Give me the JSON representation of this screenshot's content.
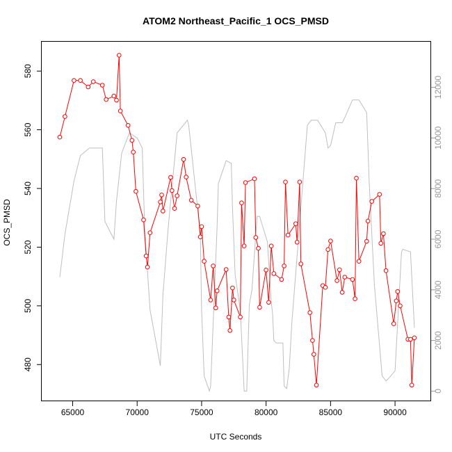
{
  "chart_data": {
    "type": "line",
    "title": "ATOM2 Northeast_Pacific_1 OCS_PMSD",
    "xlabel": "UTC Seconds",
    "ylabel": "OCS_PMSD",
    "xlim": [
      62600,
      92800
    ],
    "ylim": [
      467.5,
      590
    ],
    "y2lim": [
      -400,
      13800
    ],
    "x_ticks": [
      65000,
      70000,
      75000,
      80000,
      85000,
      90000
    ],
    "y_ticks": [
      480,
      500,
      520,
      540,
      560,
      580
    ],
    "y2_ticks": [
      0,
      2000,
      4000,
      6000,
      8000,
      10000,
      12000
    ],
    "grid": false,
    "colors": {
      "primary": "#ff0000",
      "secondary": "#bebebe",
      "axes": "#000000",
      "right_axis": "#9a9a9a"
    },
    "series": [
      {
        "axis": "left",
        "style": "line-with-open-circles",
        "x": [
          64000,
          64400,
          65100,
          65600,
          66200,
          66600,
          67300,
          67600,
          68200,
          68400,
          68600,
          68700,
          69300,
          69600,
          69700,
          69900,
          70500,
          70700,
          70800,
          71000,
          71800,
          71900,
          72000,
          72600,
          72700,
          72900,
          73100,
          73600,
          73800,
          74200,
          74700,
          74900,
          75000,
          75200,
          75700,
          75900,
          76100,
          76200,
          76900,
          77100,
          77200,
          77400,
          77500,
          78000,
          78100,
          78300,
          78400,
          79100,
          79200,
          79400,
          79500,
          80000,
          80200,
          80400,
          80600,
          81200,
          81400,
          81500,
          81700,
          82300,
          82400,
          82600,
          82700,
          83400,
          83600,
          83700,
          83900,
          84400,
          84600,
          84800,
          85000,
          85500,
          85700,
          85900,
          86100,
          86700,
          86900,
          87000,
          87200,
          87800,
          87900,
          88200,
          88800,
          88900,
          89100,
          89300,
          89900,
          90100,
          90200,
          90400,
          91000,
          91200,
          91300,
          91500
        ],
        "y": [
          557.5,
          564.5,
          576.8,
          576.8,
          574.6,
          576.4,
          575.2,
          570.3,
          571.5,
          570.1,
          585.4,
          566.4,
          561.5,
          556.4,
          552.4,
          539.0,
          529.3,
          517.0,
          513.2,
          524.9,
          535.4,
          537.8,
          532.3,
          543.8,
          539.3,
          533.2,
          537.5,
          549.9,
          543.9,
          536.0,
          534.0,
          523.5,
          527.0,
          515.2,
          502.0,
          513.6,
          499.3,
          505.1,
          512.4,
          496.2,
          491.6,
          506.1,
          502.0,
          496.2,
          535.1,
          520.4,
          542.0,
          543.3,
          523.3,
          519.6,
          499.5,
          512.2,
          501.2,
          520.4,
          511.0,
          509.0,
          513.6,
          542.2,
          524.1,
          528.0,
          521.7,
          542.2,
          514.3,
          497.7,
          488.2,
          483.5,
          473.0,
          506.9,
          506.3,
          519.2,
          522.1,
          508.6,
          512.3,
          504.6,
          509.8,
          509.0,
          502.4,
          543.5,
          515.2,
          522.0,
          528.9,
          535.6,
          538.0,
          521.3,
          524.6,
          512.0,
          493.9,
          501.7,
          504.9,
          500.0,
          488.6,
          488.6,
          473.0,
          489.1
        ]
      },
      {
        "axis": "right",
        "style": "line",
        "x": [
          64000,
          64400,
          65100,
          65600,
          66300,
          67100,
          67300,
          67500,
          68200,
          68400,
          68800,
          69400,
          70000,
          70400,
          70500,
          70600,
          71000,
          71800,
          72000,
          72400,
          73100,
          73900,
          74000,
          74900,
          75000,
          75200,
          75600,
          75700,
          76200,
          76300,
          76900,
          77300,
          77400,
          77600,
          78000,
          78300,
          78500,
          78700,
          78900,
          79300,
          79500,
          79800,
          80100,
          80400,
          80500,
          80600,
          80800,
          81300,
          81400,
          81600,
          81800,
          82000,
          83200,
          83500,
          84000,
          84600,
          84800,
          85000,
          85400,
          85900,
          86100,
          86700,
          87200,
          87800,
          88000,
          88400,
          89000,
          89300,
          89500,
          90000,
          90500,
          90600,
          91200,
          91500
        ],
        "y": [
          4500,
          6200,
          8300,
          9300,
          9600,
          9600,
          9600,
          6700,
          6000,
          7500,
          9400,
          10200,
          10000,
          9600,
          7800,
          6300,
          3200,
          1000,
          3800,
          6400,
          10200,
          10700,
          10500,
          6200,
          3200,
          600,
          0,
          200,
          6500,
          8200,
          9100,
          9000,
          7200,
          4600,
          3200,
          0,
          0,
          3400,
          4000,
          6900,
          6900,
          6400,
          5900,
          3500,
          3100,
          2000,
          1900,
          1900,
          200,
          100,
          900,
          2700,
          10500,
          10700,
          10700,
          10200,
          9600,
          9700,
          10600,
          10600,
          10800,
          11500,
          11500,
          11000,
          8200,
          4200,
          600,
          400,
          500,
          800,
          5500,
          5600,
          5500,
          2500
        ]
      }
    ]
  }
}
